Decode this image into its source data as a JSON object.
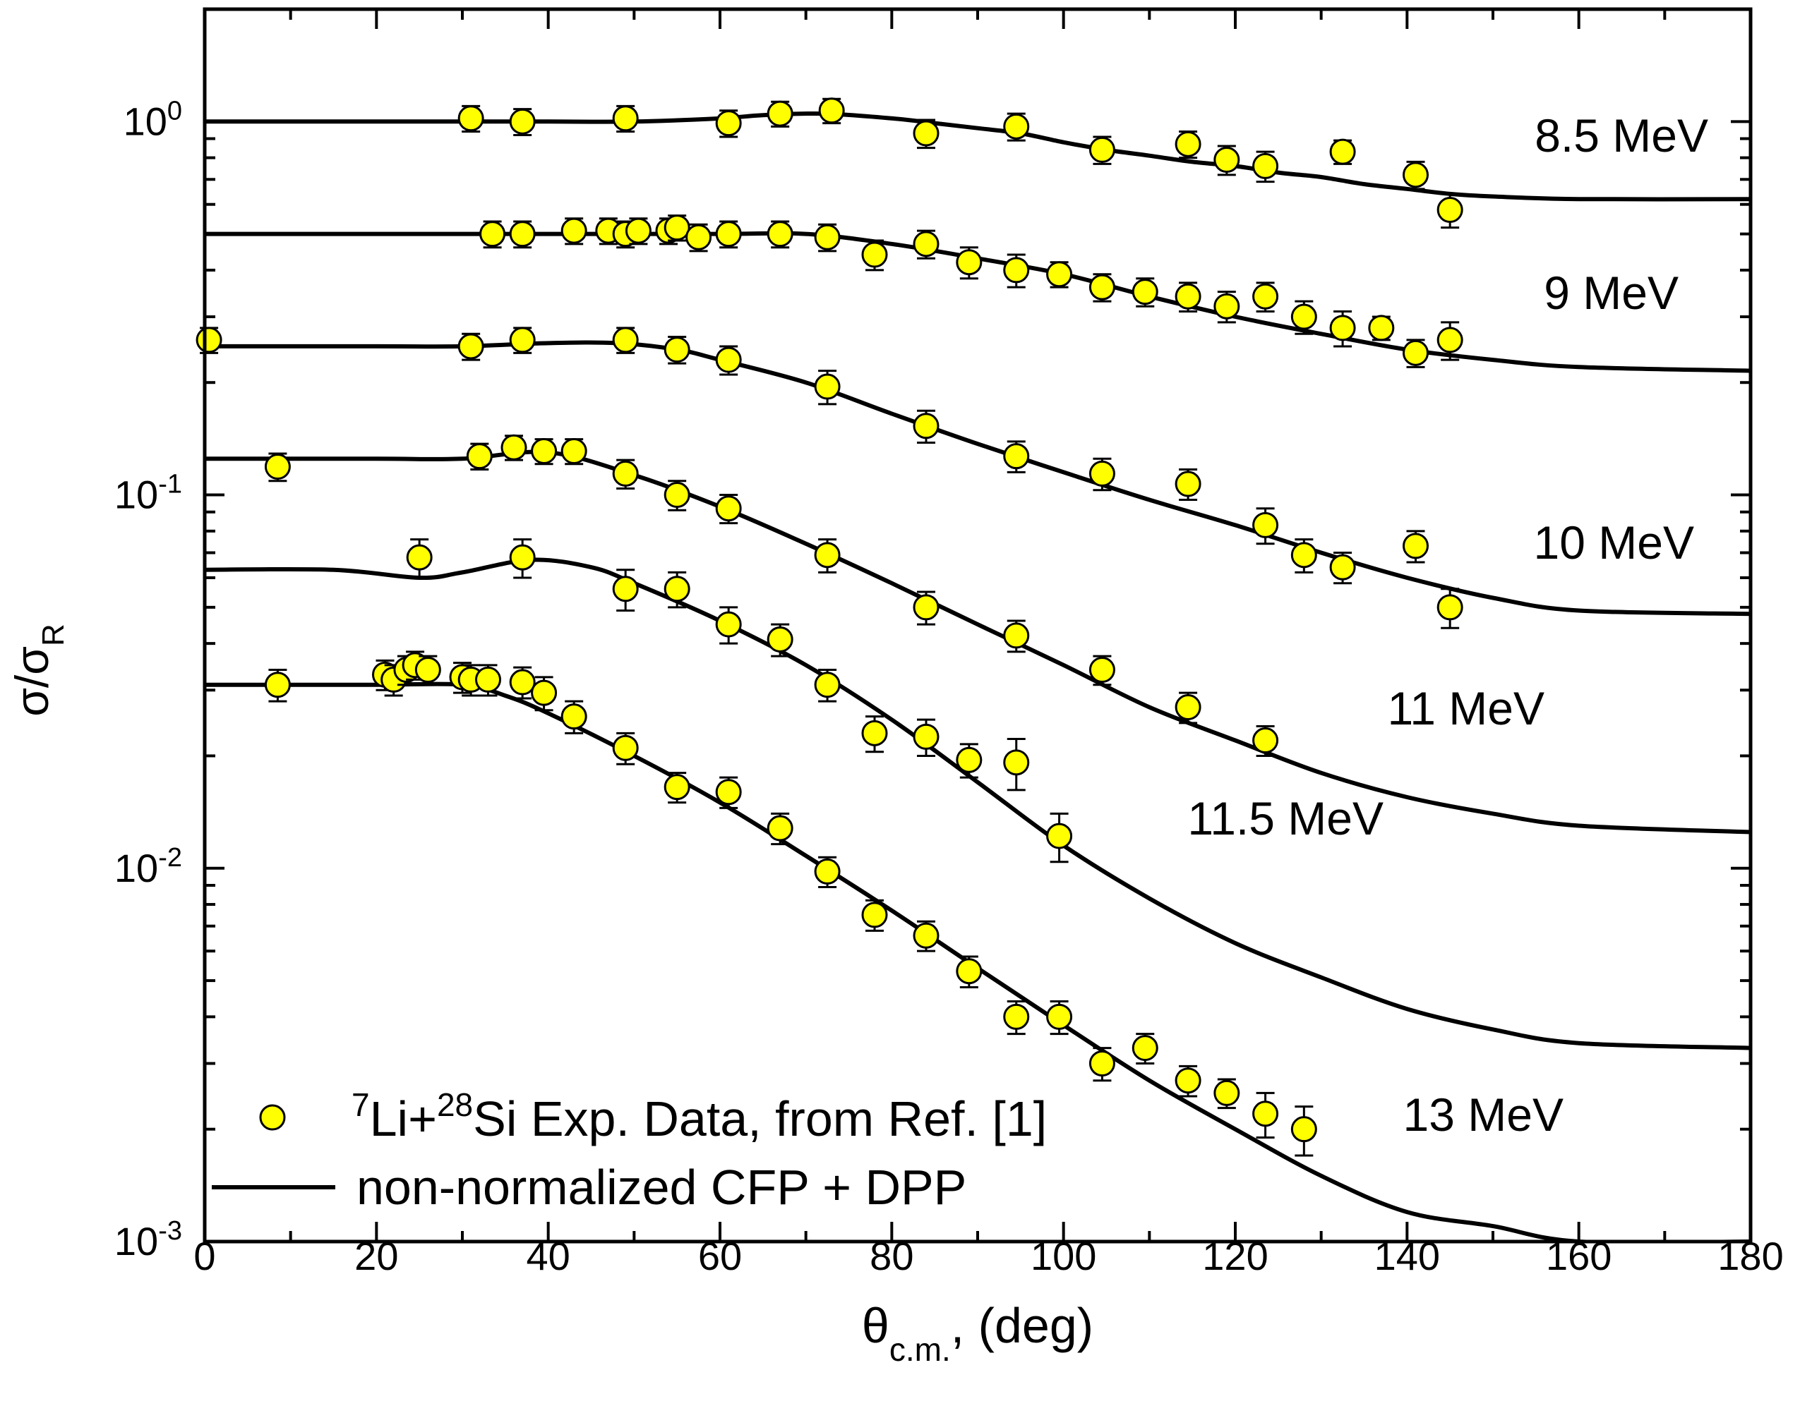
{
  "chart_data": {
    "type": "scatter",
    "xlabel": {
      "main": "θ",
      "sub": "c.m.",
      "rest": ", (deg)"
    },
    "ylabel": {
      "main": "σ/σ",
      "sub": "R"
    },
    "x_ticks": [
      "0",
      "20",
      "40",
      "60",
      "80",
      "100",
      "120",
      "140",
      "160",
      "180"
    ],
    "y_ticks": [
      {
        "base": "10",
        "exp": "0",
        "value": 1
      },
      {
        "base": "10",
        "exp": "-1",
        "value": 0.1
      },
      {
        "base": "10",
        "exp": "-2",
        "value": 0.01
      },
      {
        "base": "10",
        "exp": "-3",
        "value": 0.001
      }
    ],
    "xlim": [
      0,
      180
    ],
    "ylim": [
      0.001,
      2.0
    ],
    "yscale": "log",
    "grid": false,
    "legend": {
      "placement": "bottom-left",
      "data_entry": {
        "sup1": "7",
        "t1": "Li+",
        "sup2": "28",
        "t2": "Si Exp. Data, from Ref. [1]"
      },
      "curve_entry": "non-normalized CFP + DPP"
    },
    "marker_color": "#FFFF00",
    "line_color": "#000000",
    "series": [
      {
        "name": "8.5 MeV",
        "label": "8.5 MeV",
        "points": [
          [
            31,
            1.02,
            0.08
          ],
          [
            37,
            1.0,
            0.08
          ],
          [
            49,
            1.02,
            0.08
          ],
          [
            61,
            0.99,
            0.08
          ],
          [
            67,
            1.05,
            0.08
          ],
          [
            73,
            1.07,
            0.08
          ],
          [
            84,
            0.93,
            0.08
          ],
          [
            94.5,
            0.97,
            0.08
          ],
          [
            104.5,
            0.84,
            0.07
          ],
          [
            114.5,
            0.87,
            0.07
          ],
          [
            119,
            0.79,
            0.07
          ],
          [
            123.5,
            0.76,
            0.07
          ],
          [
            132.5,
            0.83,
            0.06
          ],
          [
            141,
            0.72,
            0.06
          ],
          [
            145,
            0.58,
            0.06
          ]
        ],
        "curve": [
          [
            0,
            1.0
          ],
          [
            30,
            1.0
          ],
          [
            40,
            1.0
          ],
          [
            50,
            1.0
          ],
          [
            60,
            1.02
          ],
          [
            65,
            1.04
          ],
          [
            72,
            1.05
          ],
          [
            80,
            1.02
          ],
          [
            85,
            0.99
          ],
          [
            90,
            0.96
          ],
          [
            95,
            0.93
          ],
          [
            100,
            0.88
          ],
          [
            105,
            0.84
          ],
          [
            110,
            0.81
          ],
          [
            115,
            0.78
          ],
          [
            120,
            0.76
          ],
          [
            125,
            0.73
          ],
          [
            130,
            0.71
          ],
          [
            135,
            0.68
          ],
          [
            140,
            0.66
          ],
          [
            145,
            0.64
          ],
          [
            150,
            0.63
          ],
          [
            160,
            0.62
          ],
          [
            180,
            0.62
          ]
        ]
      },
      {
        "name": "9 MeV",
        "label": "9 MeV",
        "points": [
          [
            33.5,
            0.5,
            0.04
          ],
          [
            37,
            0.5,
            0.04
          ],
          [
            43,
            0.51,
            0.04
          ],
          [
            47,
            0.51,
            0.04
          ],
          [
            49,
            0.5,
            0.04
          ],
          [
            50.5,
            0.51,
            0.04
          ],
          [
            54,
            0.51,
            0.04
          ],
          [
            55,
            0.52,
            0.04
          ],
          [
            57.5,
            0.49,
            0.04
          ],
          [
            61,
            0.5,
            0.04
          ],
          [
            67,
            0.5,
            0.04
          ],
          [
            72.5,
            0.49,
            0.04
          ],
          [
            78,
            0.44,
            0.04
          ],
          [
            84,
            0.47,
            0.04
          ],
          [
            89,
            0.42,
            0.04
          ],
          [
            94.5,
            0.4,
            0.04
          ],
          [
            99.5,
            0.39,
            0.03
          ],
          [
            104.5,
            0.36,
            0.03
          ],
          [
            109.5,
            0.35,
            0.03
          ],
          [
            114.5,
            0.34,
            0.03
          ],
          [
            119,
            0.32,
            0.03
          ],
          [
            123.5,
            0.34,
            0.03
          ],
          [
            128,
            0.3,
            0.03
          ],
          [
            132.5,
            0.28,
            0.03
          ],
          [
            137,
            0.28,
            0.02
          ],
          [
            141,
            0.24,
            0.02
          ],
          [
            145,
            0.26,
            0.03
          ]
        ],
        "curve": [
          [
            0,
            0.5
          ],
          [
            40,
            0.5
          ],
          [
            60,
            0.5
          ],
          [
            70,
            0.5
          ],
          [
            80,
            0.47
          ],
          [
            90,
            0.43
          ],
          [
            100,
            0.39
          ],
          [
            110,
            0.34
          ],
          [
            120,
            0.3
          ],
          [
            130,
            0.27
          ],
          [
            140,
            0.245
          ],
          [
            150,
            0.23
          ],
          [
            160,
            0.22
          ],
          [
            180,
            0.215
          ]
        ]
      },
      {
        "name": "10 MeV",
        "label": "10 MeV",
        "points": [
          [
            0.5,
            0.26,
            0.02
          ],
          [
            31,
            0.25,
            0.02
          ],
          [
            37,
            0.26,
            0.02
          ],
          [
            49,
            0.26,
            0.02
          ],
          [
            55,
            0.245,
            0.02
          ],
          [
            61,
            0.23,
            0.02
          ],
          [
            72.5,
            0.195,
            0.02
          ],
          [
            84,
            0.153,
            0.015
          ],
          [
            94.5,
            0.127,
            0.012
          ],
          [
            104.5,
            0.114,
            0.011
          ],
          [
            114.5,
            0.107,
            0.01
          ],
          [
            123.5,
            0.083,
            0.009
          ],
          [
            128,
            0.069,
            0.007
          ],
          [
            132.5,
            0.064,
            0.006
          ],
          [
            141,
            0.073,
            0.007
          ],
          [
            145,
            0.05,
            0.006
          ]
        ],
        "curve": [
          [
            0,
            0.25
          ],
          [
            20,
            0.25
          ],
          [
            30,
            0.25
          ],
          [
            40,
            0.255
          ],
          [
            48,
            0.255
          ],
          [
            55,
            0.245
          ],
          [
            60,
            0.23
          ],
          [
            70,
            0.2
          ],
          [
            80,
            0.165
          ],
          [
            90,
            0.137
          ],
          [
            100,
            0.115
          ],
          [
            110,
            0.097
          ],
          [
            120,
            0.083
          ],
          [
            130,
            0.07
          ],
          [
            140,
            0.06
          ],
          [
            150,
            0.053
          ],
          [
            160,
            0.049
          ],
          [
            180,
            0.048
          ]
        ]
      },
      {
        "name": "11 MeV",
        "label": "11 MeV",
        "points": [
          [
            8.5,
            0.119,
            0.01
          ],
          [
            32,
            0.127,
            0.01
          ],
          [
            36,
            0.134,
            0.01
          ],
          [
            39.5,
            0.131,
            0.01
          ],
          [
            43,
            0.131,
            0.01
          ],
          [
            49,
            0.114,
            0.01
          ],
          [
            55,
            0.1,
            0.009
          ],
          [
            61,
            0.092,
            0.008
          ],
          [
            72.5,
            0.069,
            0.007
          ],
          [
            84,
            0.05,
            0.005
          ],
          [
            94.5,
            0.042,
            0.004
          ],
          [
            104.5,
            0.034,
            0.003
          ],
          [
            114.5,
            0.027,
            0.0025
          ],
          [
            123.5,
            0.022,
            0.002
          ]
        ],
        "curve": [
          [
            0,
            0.125
          ],
          [
            20,
            0.125
          ],
          [
            30,
            0.125
          ],
          [
            40,
            0.13
          ],
          [
            50,
            0.113
          ],
          [
            60,
            0.093
          ],
          [
            70,
            0.074
          ],
          [
            80,
            0.058
          ],
          [
            90,
            0.045
          ],
          [
            100,
            0.035
          ],
          [
            110,
            0.027
          ],
          [
            120,
            0.022
          ],
          [
            130,
            0.018
          ],
          [
            140,
            0.0155
          ],
          [
            150,
            0.014
          ],
          [
            160,
            0.013
          ],
          [
            180,
            0.0125
          ]
        ]
      },
      {
        "name": "11.5 MeV",
        "label": "11.5 MeV",
        "points": [
          [
            25,
            0.068,
            0.008
          ],
          [
            37,
            0.068,
            0.008
          ],
          [
            49,
            0.056,
            0.007
          ],
          [
            55,
            0.056,
            0.006
          ],
          [
            61,
            0.045,
            0.005
          ],
          [
            67,
            0.041,
            0.004
          ],
          [
            72.5,
            0.031,
            0.003
          ],
          [
            78,
            0.023,
            0.0025
          ],
          [
            84,
            0.0225,
            0.0025
          ],
          [
            89,
            0.0195,
            0.002
          ],
          [
            94.5,
            0.0192,
            0.003
          ],
          [
            99.5,
            0.0122,
            0.0018
          ]
        ],
        "curve": [
          [
            0,
            0.063
          ],
          [
            15,
            0.063
          ],
          [
            25,
            0.06
          ],
          [
            30,
            0.062
          ],
          [
            38,
            0.067
          ],
          [
            45,
            0.064
          ],
          [
            50,
            0.058
          ],
          [
            60,
            0.046
          ],
          [
            70,
            0.035
          ],
          [
            80,
            0.025
          ],
          [
            90,
            0.017
          ],
          [
            100,
            0.0115
          ],
          [
            110,
            0.0083
          ],
          [
            120,
            0.0063
          ],
          [
            130,
            0.0051
          ],
          [
            140,
            0.0042
          ],
          [
            150,
            0.0037
          ],
          [
            160,
            0.0034
          ],
          [
            180,
            0.0033
          ]
        ]
      },
      {
        "name": "13 MeV",
        "label": "13 MeV",
        "points": [
          [
            8.5,
            0.031,
            0.003
          ],
          [
            21,
            0.033,
            0.003
          ],
          [
            22,
            0.032,
            0.003
          ],
          [
            23.5,
            0.034,
            0.003
          ],
          [
            24.5,
            0.035,
            0.003
          ],
          [
            26,
            0.034,
            0.003
          ],
          [
            30,
            0.0325,
            0.003
          ],
          [
            31,
            0.032,
            0.003
          ],
          [
            33,
            0.032,
            0.003
          ],
          [
            37,
            0.0315,
            0.003
          ],
          [
            39.5,
            0.0295,
            0.003
          ],
          [
            43,
            0.0255,
            0.0025
          ],
          [
            49,
            0.021,
            0.002
          ],
          [
            55,
            0.0165,
            0.0015
          ],
          [
            61,
            0.016,
            0.0015
          ],
          [
            67,
            0.0128,
            0.0012
          ],
          [
            72.5,
            0.0098,
            0.0009
          ],
          [
            78,
            0.0075,
            0.0007
          ],
          [
            84,
            0.0066,
            0.0006
          ],
          [
            89,
            0.0053,
            0.0005
          ],
          [
            94.5,
            0.004,
            0.0004
          ],
          [
            99.5,
            0.004,
            0.0004
          ],
          [
            104.5,
            0.003,
            0.0003
          ],
          [
            109.5,
            0.0033,
            0.0003
          ],
          [
            114.5,
            0.0027,
            0.00025
          ],
          [
            119,
            0.0025,
            0.00022
          ],
          [
            123.5,
            0.0022,
            0.0003
          ],
          [
            128,
            0.002,
            0.0003
          ]
        ],
        "curve": [
          [
            0,
            0.031
          ],
          [
            10,
            0.031
          ],
          [
            20,
            0.031
          ],
          [
            30,
            0.031
          ],
          [
            35,
            0.029
          ],
          [
            40,
            0.026
          ],
          [
            50,
            0.02
          ],
          [
            60,
            0.015
          ],
          [
            70,
            0.0108
          ],
          [
            80,
            0.0077
          ],
          [
            90,
            0.0054
          ],
          [
            100,
            0.0038
          ],
          [
            110,
            0.0027
          ],
          [
            120,
            0.002
          ],
          [
            130,
            0.0015
          ],
          [
            140,
            0.0012
          ],
          [
            150,
            0.0011
          ],
          [
            160,
            0.001
          ],
          [
            180,
            0.001
          ]
        ]
      }
    ]
  }
}
